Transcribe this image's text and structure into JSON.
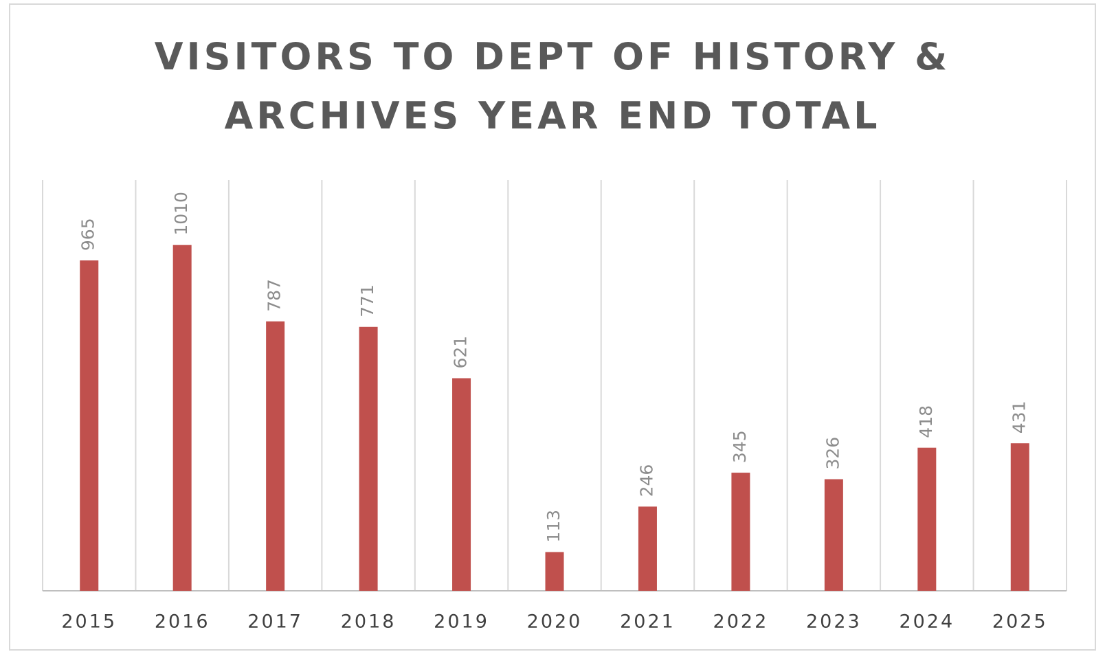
{
  "chart_data": {
    "type": "bar",
    "title": "VISITORS TO DEPT OF HISTORY & ARCHIVES YEAR END TOTAL",
    "categories": [
      "2015",
      "2016",
      "2017",
      "2018",
      "2019",
      "2020",
      "2021",
      "2022",
      "2023",
      "2024",
      "2025"
    ],
    "values": [
      965,
      1010,
      787,
      771,
      621,
      113,
      246,
      345,
      326,
      418,
      431
    ],
    "color": "#c0504d",
    "ylim": [
      0,
      1200
    ]
  }
}
